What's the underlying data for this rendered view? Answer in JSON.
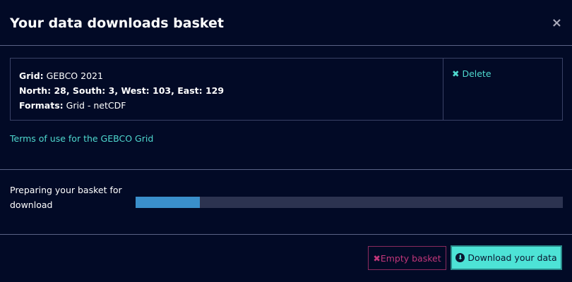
{
  "header": {
    "title": "Your data downloads basket",
    "close_icon": "×"
  },
  "item": {
    "grid_label": "Grid:",
    "grid_value": " GEBCO 2021",
    "bounds": "North: 28, South: 3, West: 103, East: 129",
    "formats_label": "Formats:",
    "formats_value": " Grid - netCDF",
    "delete_icon": "✖",
    "delete_label": " Delete"
  },
  "terms_link": "Terms of use for the GEBCO Grid",
  "progress": {
    "label": "Preparing your basket for download",
    "percent": 15,
    "color": "#3a8fcb"
  },
  "footer": {
    "empty_icon": "✖",
    "empty_label": " Empty basket",
    "download_icon": "⬇",
    "download_label": " Download your data"
  },
  "colors": {
    "accent": "#4de3d6",
    "danger": "#c2367a",
    "background": "#020a26"
  }
}
